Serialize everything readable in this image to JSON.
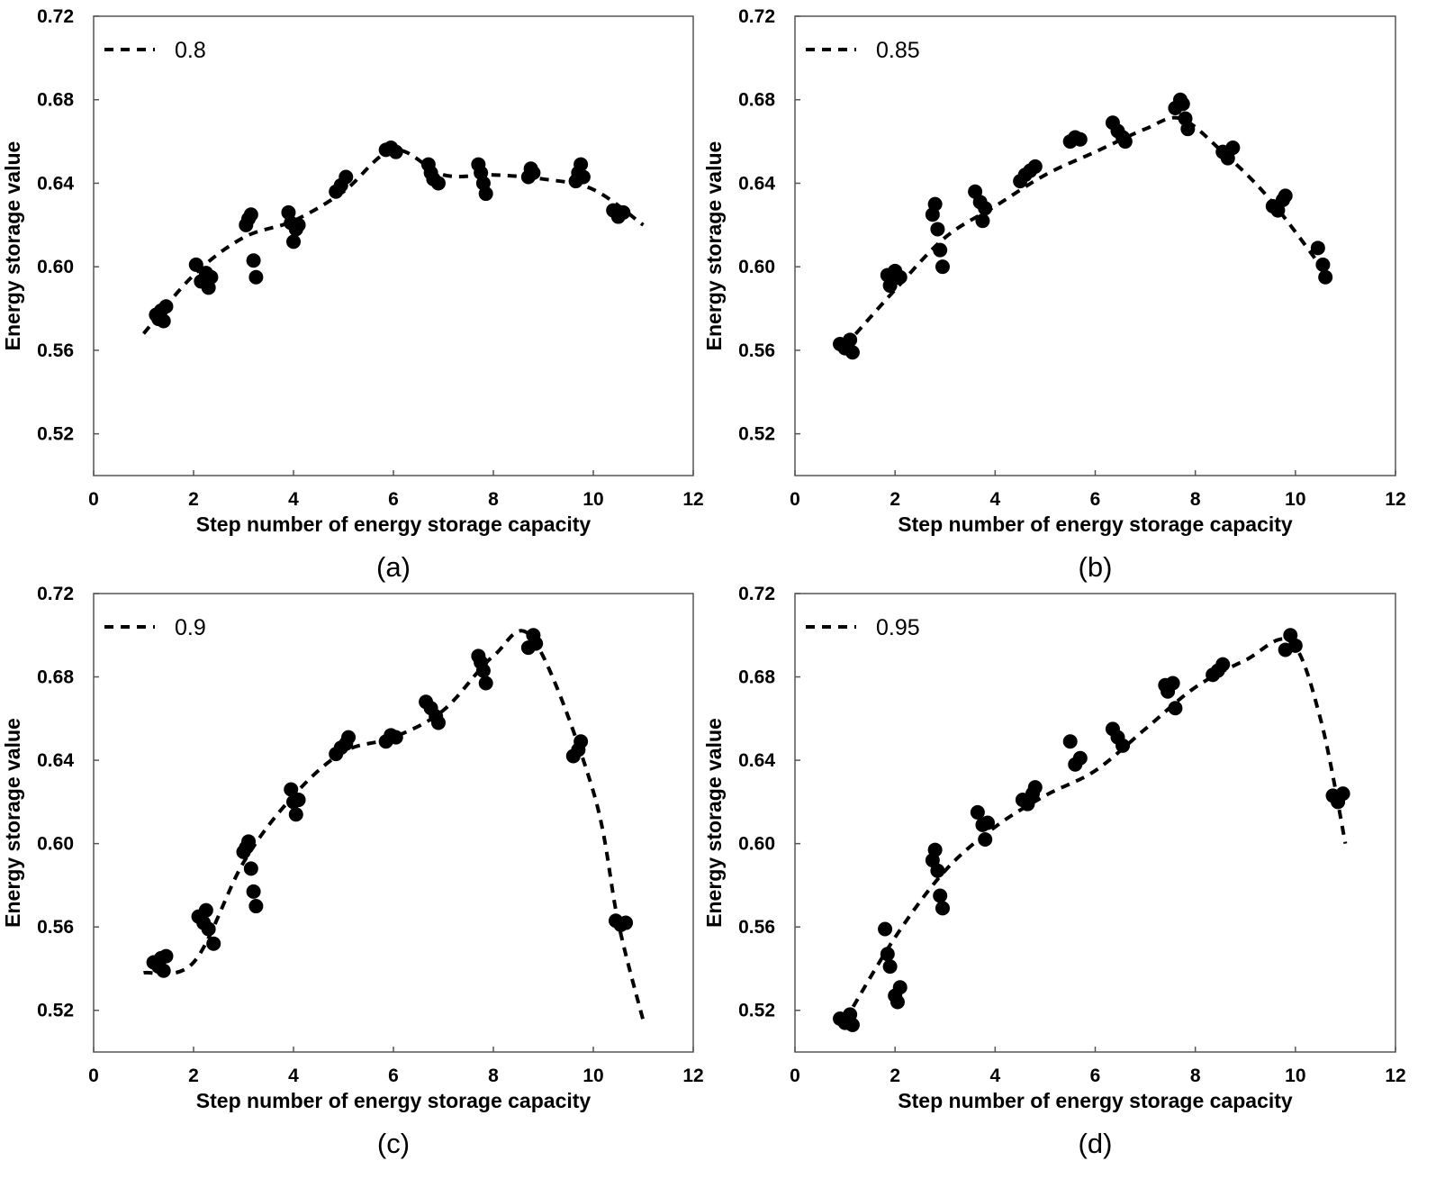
{
  "figure_type": "multi-panel scatter with dashed fit curves",
  "chart_data": [
    {
      "type": "scatter",
      "panel_label": "(a)",
      "legend": "0.8",
      "xlabel": "Step number of energy storage capacity",
      "ylabel": "Energy storage value",
      "xlim": [
        0,
        12
      ],
      "ylim": [
        0.5,
        0.72
      ],
      "xticks": [
        "0",
        "2",
        "4",
        "6",
        "8",
        "10",
        "12"
      ],
      "yticks": [
        "0.52",
        "0.56",
        "0.60",
        "0.64",
        "0.68",
        "0.72"
      ],
      "curve": {
        "x": [
          1.0,
          2.0,
          3.0,
          4.0,
          5.0,
          6.0,
          7.0,
          8.0,
          9.0,
          10.0,
          11.0
        ],
        "y": [
          0.568,
          0.596,
          0.614,
          0.622,
          0.636,
          0.656,
          0.644,
          0.644,
          0.642,
          0.637,
          0.62
        ]
      },
      "points": {
        "x": [
          1.25,
          1.3,
          1.35,
          1.4,
          1.45,
          2.05,
          2.15,
          2.25,
          2.3,
          2.35,
          3.05,
          3.1,
          3.15,
          3.2,
          3.25,
          3.9,
          3.95,
          4.0,
          4.05,
          4.1,
          4.85,
          4.95,
          5.05,
          5.85,
          5.95,
          6.05,
          6.7,
          6.75,
          6.8,
          6.9,
          7.7,
          7.75,
          7.8,
          7.85,
          8.7,
          8.75,
          8.8,
          9.65,
          9.7,
          9.75,
          9.8,
          10.4,
          10.5,
          10.6
        ],
        "y": [
          0.577,
          0.575,
          0.579,
          0.574,
          0.581,
          0.601,
          0.593,
          0.597,
          0.59,
          0.595,
          0.62,
          0.623,
          0.625,
          0.603,
          0.595,
          0.626,
          0.621,
          0.612,
          0.618,
          0.62,
          0.636,
          0.639,
          0.643,
          0.656,
          0.657,
          0.655,
          0.649,
          0.645,
          0.642,
          0.64,
          0.649,
          0.645,
          0.64,
          0.635,
          0.643,
          0.647,
          0.645,
          0.641,
          0.645,
          0.649,
          0.643,
          0.627,
          0.624,
          0.626
        ]
      }
    },
    {
      "type": "scatter",
      "panel_label": "(b)",
      "legend": "0.85",
      "xlabel": "Step number of energy storage capacity",
      "ylabel": "Energy storage value",
      "xlim": [
        0,
        12
      ],
      "ylim": [
        0.5,
        0.72
      ],
      "xticks": [
        "0",
        "2",
        "4",
        "6",
        "8",
        "10",
        "12"
      ],
      "yticks": [
        "0.52",
        "0.56",
        "0.60",
        "0.64",
        "0.68",
        "0.72"
      ],
      "curve": {
        "x": [
          1.0,
          2.0,
          3.0,
          4.0,
          5.0,
          6.0,
          7.0,
          7.7,
          8.5,
          9.5,
          10.7
        ],
        "y": [
          0.562,
          0.589,
          0.614,
          0.629,
          0.644,
          0.655,
          0.666,
          0.671,
          0.656,
          0.632,
          0.594
        ]
      },
      "points": {
        "x": [
          0.9,
          1.0,
          1.1,
          1.15,
          1.85,
          1.9,
          1.95,
          2.0,
          2.1,
          2.75,
          2.8,
          2.85,
          2.9,
          2.95,
          3.6,
          3.7,
          3.75,
          3.8,
          4.5,
          4.6,
          4.7,
          4.8,
          5.5,
          5.6,
          5.7,
          6.35,
          6.45,
          6.55,
          6.6,
          7.6,
          7.7,
          7.75,
          7.8,
          7.85,
          8.55,
          8.65,
          8.75,
          9.55,
          9.65,
          9.75,
          9.8,
          10.45,
          10.55,
          10.6
        ],
        "y": [
          0.563,
          0.561,
          0.565,
          0.559,
          0.596,
          0.591,
          0.594,
          0.598,
          0.595,
          0.625,
          0.63,
          0.618,
          0.608,
          0.6,
          0.636,
          0.631,
          0.622,
          0.628,
          0.641,
          0.644,
          0.646,
          0.648,
          0.66,
          0.662,
          0.661,
          0.669,
          0.665,
          0.662,
          0.66,
          0.676,
          0.68,
          0.678,
          0.671,
          0.666,
          0.655,
          0.652,
          0.657,
          0.629,
          0.627,
          0.632,
          0.634,
          0.609,
          0.601,
          0.595
        ]
      }
    },
    {
      "type": "scatter",
      "panel_label": "(c)",
      "legend": "0.9",
      "xlabel": "Step number of energy storage capacity",
      "ylabel": "Energy storage value",
      "xlim": [
        0,
        12
      ],
      "ylim": [
        0.5,
        0.72
      ],
      "xticks": [
        "0",
        "2",
        "4",
        "6",
        "8",
        "10",
        "12"
      ],
      "yticks": [
        "0.52",
        "0.56",
        "0.60",
        "0.64",
        "0.68",
        "0.72"
      ],
      "curve": {
        "x": [
          1.0,
          2.0,
          3.0,
          4.0,
          5.0,
          6.0,
          7.0,
          8.0,
          8.8,
          10.0,
          10.5,
          11.0
        ],
        "y": [
          0.538,
          0.543,
          0.591,
          0.623,
          0.644,
          0.651,
          0.664,
          0.69,
          0.698,
          0.625,
          0.562,
          0.515
        ]
      },
      "points": {
        "x": [
          1.2,
          1.3,
          1.35,
          1.4,
          1.45,
          2.1,
          2.2,
          2.25,
          2.3,
          2.4,
          3.0,
          3.05,
          3.1,
          3.15,
          3.2,
          3.25,
          3.95,
          4.0,
          4.05,
          4.1,
          4.85,
          4.95,
          5.05,
          5.1,
          5.85,
          5.95,
          6.05,
          6.65,
          6.75,
          6.85,
          6.9,
          7.7,
          7.75,
          7.8,
          7.85,
          8.7,
          8.8,
          8.85,
          9.6,
          9.7,
          9.75,
          10.45,
          10.55,
          10.65
        ],
        "y": [
          0.543,
          0.541,
          0.545,
          0.539,
          0.546,
          0.565,
          0.562,
          0.568,
          0.559,
          0.552,
          0.596,
          0.598,
          0.601,
          0.588,
          0.577,
          0.57,
          0.626,
          0.62,
          0.614,
          0.621,
          0.643,
          0.646,
          0.648,
          0.651,
          0.649,
          0.652,
          0.651,
          0.668,
          0.665,
          0.661,
          0.658,
          0.69,
          0.687,
          0.683,
          0.677,
          0.694,
          0.7,
          0.696,
          0.642,
          0.645,
          0.649,
          0.563,
          0.561,
          0.562
        ]
      }
    },
    {
      "type": "scatter",
      "panel_label": "(d)",
      "legend": "0.95",
      "xlabel": "Step number of energy storage capacity",
      "ylabel": "Energy storage value",
      "xlim": [
        0,
        12
      ],
      "ylim": [
        0.5,
        0.72
      ],
      "xticks": [
        "0",
        "2",
        "4",
        "6",
        "8",
        "10",
        "12"
      ],
      "yticks": [
        "0.52",
        "0.56",
        "0.60",
        "0.64",
        "0.68",
        "0.72"
      ],
      "curve": {
        "x": [
          1.0,
          2.0,
          3.0,
          4.0,
          5.0,
          6.0,
          7.0,
          8.0,
          9.0,
          9.9,
          10.5,
          11.0
        ],
        "y": [
          0.515,
          0.555,
          0.587,
          0.608,
          0.623,
          0.635,
          0.655,
          0.675,
          0.688,
          0.697,
          0.66,
          0.6
        ]
      },
      "points": {
        "x": [
          0.9,
          1.0,
          1.1,
          1.15,
          1.8,
          1.85,
          1.9,
          2.0,
          2.05,
          2.1,
          2.75,
          2.8,
          2.85,
          2.9,
          2.95,
          3.65,
          3.75,
          3.8,
          3.85,
          4.55,
          4.65,
          4.75,
          4.8,
          5.5,
          5.6,
          5.7,
          6.35,
          6.45,
          6.55,
          7.4,
          7.45,
          7.55,
          7.6,
          8.35,
          8.45,
          8.55,
          9.8,
          9.9,
          10.0,
          10.75,
          10.85,
          10.95
        ],
        "y": [
          0.516,
          0.514,
          0.518,
          0.513,
          0.559,
          0.547,
          0.541,
          0.527,
          0.524,
          0.531,
          0.592,
          0.597,
          0.587,
          0.575,
          0.569,
          0.615,
          0.609,
          0.602,
          0.61,
          0.621,
          0.619,
          0.624,
          0.627,
          0.649,
          0.638,
          0.641,
          0.655,
          0.651,
          0.647,
          0.676,
          0.673,
          0.677,
          0.665,
          0.681,
          0.683,
          0.686,
          0.693,
          0.7,
          0.695,
          0.623,
          0.62,
          0.624
        ]
      }
    }
  ]
}
